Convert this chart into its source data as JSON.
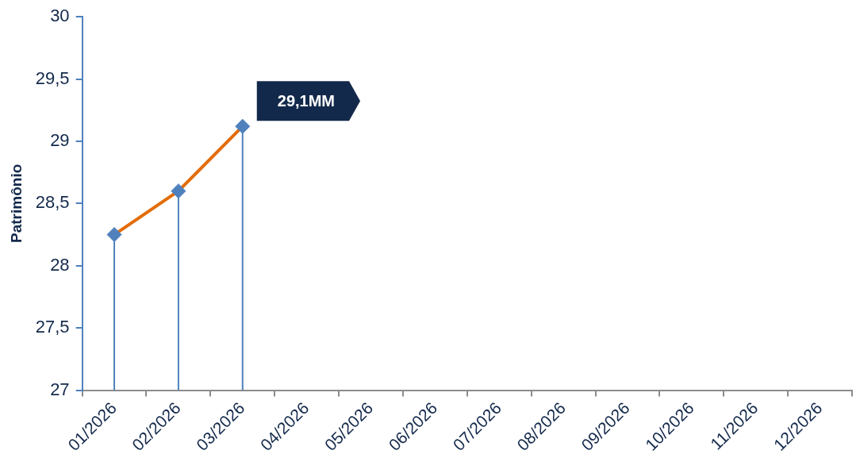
{
  "chart_data": {
    "type": "line",
    "ylabel": "Patrimônio",
    "categories": [
      "01/2026",
      "02/2026",
      "03/2026",
      "04/2026",
      "05/2026",
      "06/2026",
      "07/2026",
      "08/2026",
      "09/2026",
      "10/2026",
      "11/2026",
      "12/2026"
    ],
    "series": [
      {
        "color": "#e36c0a",
        "marker": "none",
        "values": [
          28.25,
          28.6,
          29.12,
          null,
          null,
          null,
          null,
          null,
          null,
          null,
          null,
          null
        ]
      },
      {
        "type": "lollipop",
        "color": "#4f81bd",
        "marker": "diamond",
        "values": [
          28.25,
          28.6,
          29.12,
          null,
          null,
          null,
          null,
          null,
          null,
          null,
          null,
          null
        ]
      }
    ],
    "ylim": [
      27,
      30
    ],
    "yticks": [
      27,
      {
        "value": 27.5,
        "label": "27,5"
      },
      28,
      {
        "value": 28.5,
        "label": "28,5"
      },
      29,
      {
        "value": 29.5,
        "label": "29,5"
      },
      30
    ],
    "annotations": [
      {
        "text": "29,1MM",
        "x": "03/2026",
        "y": 29.12
      }
    ],
    "legend": false
  }
}
